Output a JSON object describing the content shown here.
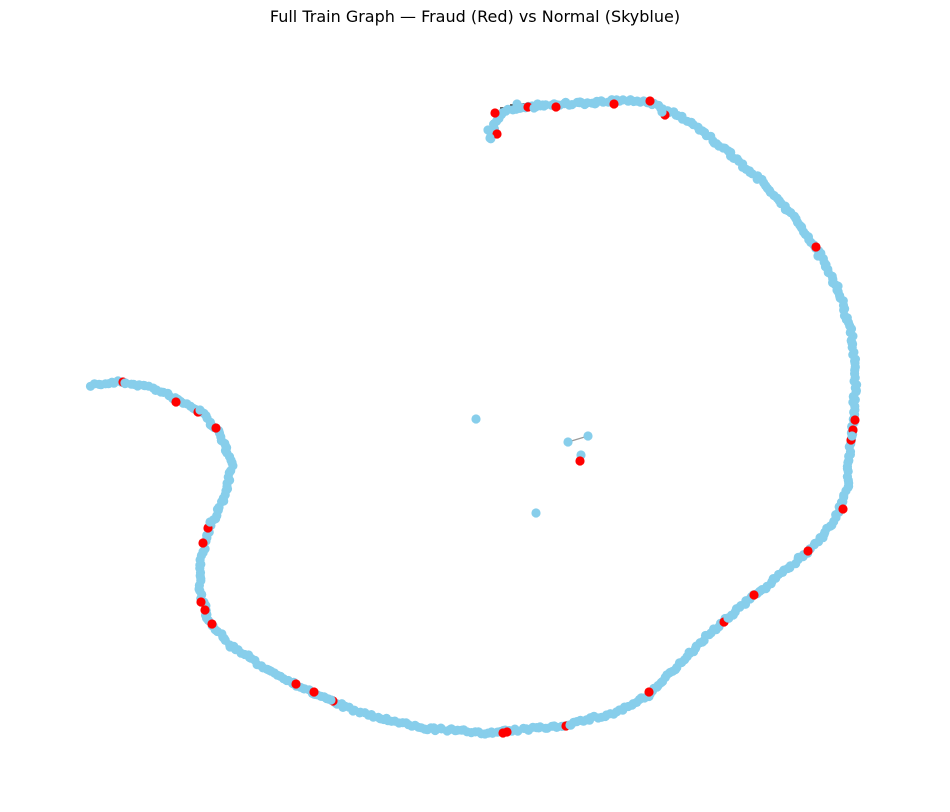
{
  "title": "Full Train Graph — Fraud (Red) vs Normal (Skyblue)",
  "colors": {
    "normal": "#87ceeb",
    "fraud": "#ff0000",
    "edge_light": "#9a9a9a",
    "edge_dark": "#222222"
  }
}
